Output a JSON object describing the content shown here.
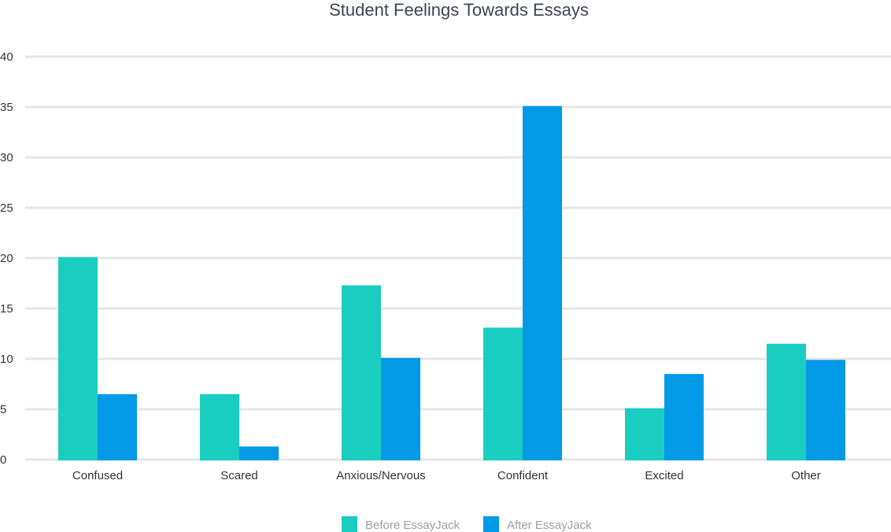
{
  "chart_data": {
    "type": "bar",
    "title": "Student Feelings Towards Essays",
    "xlabel": "",
    "ylabel": "",
    "categories": [
      "Confused",
      "Scared",
      "Anxious/Nervous",
      "Confident",
      "Excited",
      "Other"
    ],
    "series": [
      {
        "name": "Before EssayJack",
        "color": "#19cdc1",
        "values": [
          20.1,
          6.5,
          17.3,
          13.1,
          5.1,
          11.5
        ]
      },
      {
        "name": "After EssayJack",
        "color": "#0299e6",
        "values": [
          6.5,
          1.3,
          10.1,
          35.1,
          8.5,
          9.9
        ]
      }
    ],
    "ylim": [
      0,
      40
    ],
    "yticks": [
      0,
      5,
      10,
      15,
      20,
      25,
      30,
      35,
      40
    ],
    "grid": true,
    "legend_position": "bottom"
  }
}
